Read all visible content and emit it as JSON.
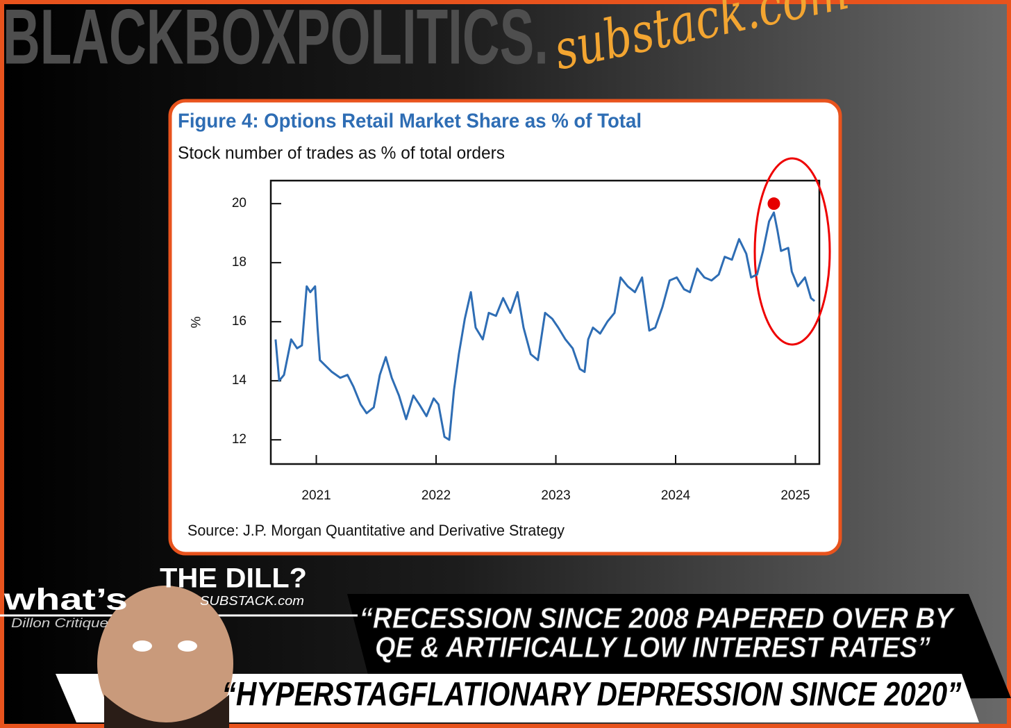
{
  "brand": {
    "name": "BLACKBOXPOLITICS.",
    "domain": "substack.com"
  },
  "chart_data": {
    "type": "line",
    "title": "Figure 4: Options Retail Market Share as % of Total",
    "subtitle": "Stock number of trades as % of total orders",
    "y_label": "%",
    "source": "Source: J.P. Morgan Quantitative and Derivative Strategy",
    "color": "#2e6db4",
    "x": [
      2020.66,
      2020.69,
      2020.73,
      2020.79,
      2020.84,
      2020.88,
      2020.92,
      2020.95,
      2020.99,
      2021.01,
      2021.03,
      2021.08,
      2021.13,
      2021.2,
      2021.26,
      2021.31,
      2021.37,
      2021.42,
      2021.48,
      2021.53,
      2021.58,
      2021.63,
      2021.69,
      2021.75,
      2021.81,
      2021.86,
      2021.92,
      2021.98,
      2022.02,
      2022.07,
      2022.11,
      2022.15,
      2022.19,
      2022.24,
      2022.29,
      2022.33,
      2022.39,
      2022.44,
      2022.5,
      2022.56,
      2022.62,
      2022.68,
      2022.73,
      2022.79,
      2022.85,
      2022.91,
      2022.97,
      2023.02,
      2023.08,
      2023.14,
      2023.2,
      2023.24,
      2023.27,
      2023.31,
      2023.37,
      2023.43,
      2023.49,
      2023.54,
      2023.6,
      2023.66,
      2023.72,
      2023.78,
      2023.83,
      2023.89,
      2023.95,
      2024.01,
      2024.07,
      2024.12,
      2024.18,
      2024.24,
      2024.3,
      2024.36,
      2024.41,
      2024.47,
      2024.53,
      2024.59,
      2024.63,
      2024.68,
      2024.73,
      2024.78,
      2024.82,
      2024.85,
      2024.88,
      2024.94,
      2024.97,
      2025.02,
      2025.08,
      2025.13,
      2025.16
    ],
    "values": [
      15.4,
      14.0,
      14.2,
      15.4,
      15.1,
      15.2,
      17.2,
      17.0,
      17.2,
      15.8,
      14.7,
      14.5,
      14.3,
      14.1,
      14.2,
      13.8,
      13.2,
      12.9,
      13.1,
      14.2,
      14.8,
      14.1,
      13.5,
      12.7,
      13.5,
      13.2,
      12.8,
      13.4,
      13.2,
      12.1,
      12.0,
      13.7,
      14.9,
      16.1,
      17.0,
      15.8,
      15.4,
      16.3,
      16.2,
      16.8,
      16.3,
      17.0,
      15.8,
      14.9,
      14.7,
      16.3,
      16.1,
      15.8,
      15.4,
      15.1,
      14.4,
      14.3,
      15.4,
      15.8,
      15.6,
      16.0,
      16.3,
      17.5,
      17.2,
      17.0,
      17.5,
      15.7,
      15.8,
      16.5,
      17.4,
      17.5,
      17.1,
      17.0,
      17.8,
      17.5,
      17.4,
      17.6,
      18.2,
      18.1,
      18.8,
      18.3,
      17.5,
      17.6,
      18.4,
      19.4,
      19.7,
      19.1,
      18.4,
      18.5,
      17.7,
      17.2,
      17.5,
      16.8,
      16.7
    ],
    "highlight": {
      "x": 2024.82,
      "y": 20,
      "color": "#e60000"
    },
    "xlim": [
      2020.62,
      2025.2
    ],
    "xticks": [
      2021,
      2022,
      2023,
      2024,
      2025
    ],
    "ylim": [
      11.18,
      20.78
    ],
    "yticks": [
      12,
      14,
      16,
      18,
      20
    ]
  },
  "footer": {
    "logo_top": "THE DILL?",
    "logo_sub": "SUBSTACK.com",
    "logo_what": "what’s",
    "logo_author": "Dillon Critique",
    "quote_1": [
      "“RECESSION SINCE 2008 PAPERED OVER BY",
      "QE & ARTIFICALLY LOW INTEREST RATES”"
    ],
    "quote_2": "“HYPERSTAGFLATIONARY DEPRESSION SINCE 2020”"
  }
}
